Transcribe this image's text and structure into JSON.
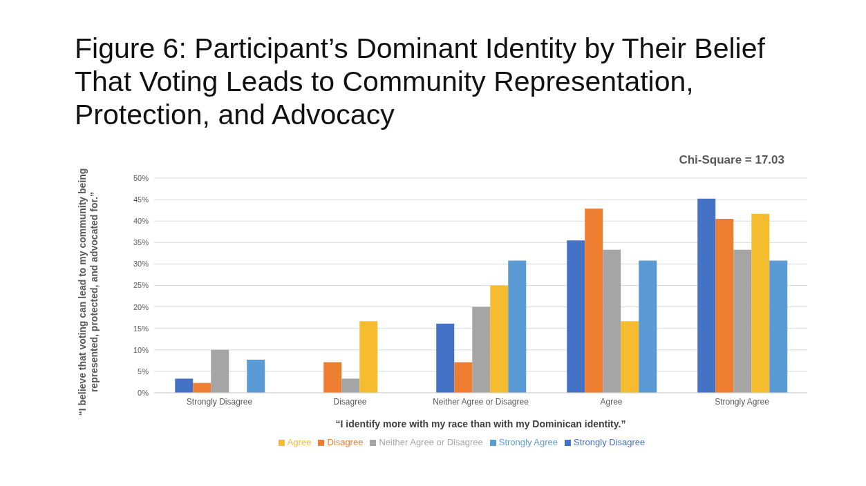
{
  "chart_data": {
    "type": "bar",
    "title": "Figure 6: Participant’s Dominant Identity by Their Belief That Voting Leads to Community Representation, Protection, and Advocacy",
    "xlabel": "“I identify more with my race than with my Dominican identity.”",
    "ylabel": "“I believe that voting can lead to my community being represented, protected, and advocated for.”",
    "annotations": [
      "Chi-Square = 17.03"
    ],
    "categories": [
      "Strongly Disagree",
      "Disagree",
      "Neither Agree or Disagree",
      "Agree",
      "Strongly Agree"
    ],
    "series": [
      {
        "name": "Strongly Disagree",
        "color": "#4472c4",
        "values": [
          3.3,
          0,
          16.1,
          35.5,
          45.2
        ]
      },
      {
        "name": "Disagree",
        "color": "#ed7d31",
        "values": [
          2.3,
          7.1,
          7.1,
          42.9,
          40.5
        ]
      },
      {
        "name": "Neither Agree or Disagree",
        "color": "#a5a5a5",
        "values": [
          10,
          3.3,
          20,
          33.3,
          33.3
        ]
      },
      {
        "name": "Agree",
        "color": "#f6bc2f",
        "values": [
          0,
          16.7,
          25,
          16.7,
          41.7
        ]
      },
      {
        "name": "Strongly Agree",
        "color": "#5b9bd5",
        "values": [
          7.7,
          0,
          30.8,
          30.8,
          30.8
        ]
      }
    ],
    "ylim": [
      0,
      50
    ],
    "yticks": [
      {
        "value": 0,
        "label": "0%"
      },
      {
        "value": 5,
        "label": "5%"
      },
      {
        "value": 10,
        "label": "10%"
      },
      {
        "value": 15,
        "label": "15%"
      },
      {
        "value": 20,
        "label": "20%"
      },
      {
        "value": 25,
        "label": "25%"
      },
      {
        "value": 30,
        "label": "30%"
      },
      {
        "value": 35,
        "label": "35%"
      },
      {
        "value": 40,
        "label": "40%"
      },
      {
        "value": 45,
        "label": "45%"
      },
      {
        "value": 50,
        "label": "50%"
      }
    ],
    "grid": "y",
    "legend": "bottom"
  }
}
